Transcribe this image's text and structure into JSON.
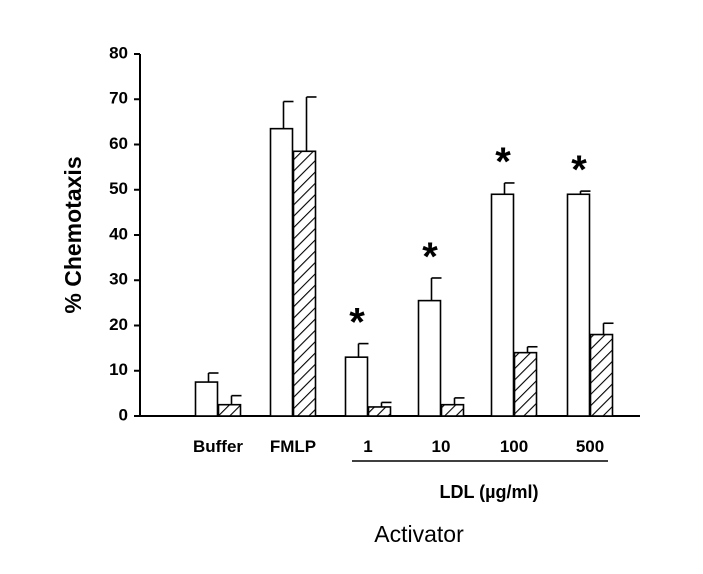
{
  "chart_data": {
    "type": "bar",
    "title": "",
    "ylabel": "% Chemotaxis",
    "xlabel": "Activator",
    "group_label": "LDL (µg/ml)",
    "ylim": [
      0,
      80
    ],
    "yticks": [
      0,
      10,
      20,
      30,
      40,
      50,
      60,
      70,
      80
    ],
    "grid": false,
    "legend": "none",
    "categories": [
      "Buffer",
      "FMLP",
      "1",
      "10",
      "100",
      "500"
    ],
    "series": [
      {
        "fill": "open",
        "values": [
          7.5,
          63.5,
          13,
          25.5,
          49,
          49
        ],
        "errors": [
          2,
          6,
          3,
          5,
          2.5,
          0.7
        ]
      },
      {
        "fill": "hatched",
        "values": [
          2.5,
          58.5,
          2,
          2.5,
          14,
          18
        ],
        "errors": [
          2,
          12,
          1,
          1.5,
          1.3,
          2.5
        ]
      }
    ],
    "annotations": [
      {
        "category": "1",
        "text": "*"
      },
      {
        "category": "10",
        "text": "*"
      },
      {
        "category": "100",
        "text": "*"
      },
      {
        "category": "500",
        "text": "*"
      }
    ]
  }
}
